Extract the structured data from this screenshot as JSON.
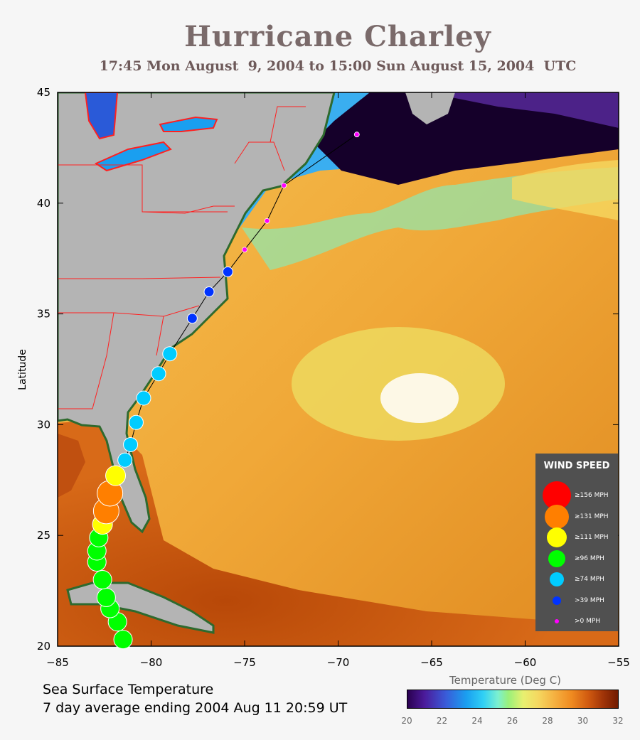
{
  "title": "Hurricane Charley",
  "subtitle": "17:45 Mon August  9, 2004 to 15:00 Sun August 15, 2004  UTC",
  "axes": {
    "ylabel": "Latitude",
    "lon_ticks": [
      "−85",
      "−80",
      "−75",
      "−70",
      "−65",
      "−60",
      "−55"
    ],
    "lat_ticks": [
      "20",
      "25",
      "30",
      "35",
      "40",
      "45"
    ]
  },
  "caption": {
    "line1": "Sea Surface Temperature",
    "line2": "7 day average ending 2004 Aug 11 20:59 UT"
  },
  "colorbar": {
    "title": "Temperature (Deg C)",
    "ticks": [
      "20",
      "22",
      "24",
      "26",
      "28",
      "30",
      "32"
    ]
  },
  "legend": {
    "title": "WIND SPEED",
    "items": [
      {
        "label": "≥156 MPH",
        "color": "#ff0000"
      },
      {
        "label": "≥131 MPH",
        "color": "#ff7f00"
      },
      {
        "label": "≥111 MPH",
        "color": "#ffff00"
      },
      {
        "label": "≥96 MPH",
        "color": "#00ff00"
      },
      {
        "label": "≥74 MPH",
        "color": "#00ccff"
      },
      {
        "label": ">39 MPH",
        "color": "#0033ff"
      },
      {
        "label": ">0 MPH",
        "color": "#ff00ff"
      }
    ]
  },
  "colors": {
    "land": "#b4b4b4",
    "ocean_warm": "#f0a030",
    "ocean_cold": "#200030",
    "borders": "#ff0000",
    "track": "#000000"
  },
  "track": {
    "points": [
      {
        "lon": -81.5,
        "lat": 20.3,
        "category": 96
      },
      {
        "lon": -81.8,
        "lat": 21.1,
        "category": 96
      },
      {
        "lon": -82.2,
        "lat": 21.7,
        "category": 96
      },
      {
        "lon": -82.4,
        "lat": 22.2,
        "category": 96
      },
      {
        "lon": -82.6,
        "lat": 23.0,
        "category": 96
      },
      {
        "lon": -82.9,
        "lat": 23.8,
        "category": 96
      },
      {
        "lon": -82.9,
        "lat": 24.3,
        "category": 96
      },
      {
        "lon": -82.8,
        "lat": 24.9,
        "category": 96
      },
      {
        "lon": -82.6,
        "lat": 25.5,
        "category": 111
      },
      {
        "lon": -82.4,
        "lat": 26.1,
        "category": 131
      },
      {
        "lon": -82.2,
        "lat": 26.9,
        "category": 131
      },
      {
        "lon": -81.9,
        "lat": 27.7,
        "category": 111
      },
      {
        "lon": -81.4,
        "lat": 28.4,
        "category": 74
      },
      {
        "lon": -81.1,
        "lat": 29.1,
        "category": 74
      },
      {
        "lon": -80.8,
        "lat": 30.1,
        "category": 74
      },
      {
        "lon": -80.4,
        "lat": 31.2,
        "category": 74
      },
      {
        "lon": -79.6,
        "lat": 32.3,
        "category": 74
      },
      {
        "lon": -79.0,
        "lat": 33.2,
        "category": 74
      },
      {
        "lon": -77.8,
        "lat": 34.8,
        "category": 39
      },
      {
        "lon": -76.9,
        "lat": 36.0,
        "category": 39
      },
      {
        "lon": -75.9,
        "lat": 36.9,
        "category": 39
      },
      {
        "lon": -75.0,
        "lat": 37.9,
        "category": 0
      },
      {
        "lon": -73.8,
        "lat": 39.2,
        "category": 0
      },
      {
        "lon": -72.9,
        "lat": 40.8,
        "category": 0
      },
      {
        "lon": -69.0,
        "lat": 43.1,
        "category": 0
      }
    ]
  }
}
